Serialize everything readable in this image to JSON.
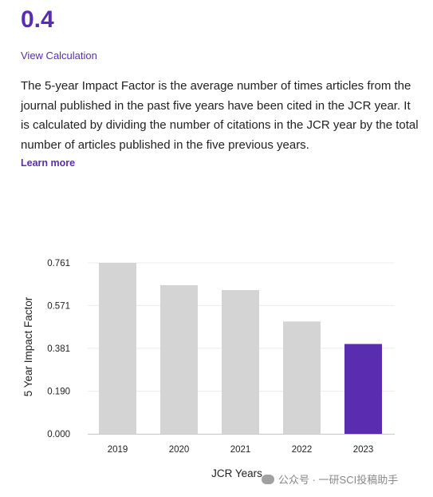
{
  "metric": {
    "value": "0.4"
  },
  "links": {
    "view_calculation": "View Calculation",
    "learn_more": "Learn more"
  },
  "description": "The 5-year Impact Factor is the average number of times articles from the journal published in the past five years have been cited in the JCR year. It is calculated by dividing the number of citations in the JCR year by the total number of articles published in the five previous years.",
  "colors": {
    "accent": "#5a2db0",
    "bar": "#d3d4d3",
    "bar_highlight": "#5a2db0"
  },
  "chart_data": {
    "type": "bar",
    "categories": [
      "2019",
      "2020",
      "2021",
      "2022",
      "2023"
    ],
    "values": [
      0.761,
      0.662,
      0.64,
      0.5,
      0.4
    ],
    "highlight_index": 4,
    "xlabel": "JCR Years",
    "ylabel": "5 Year Impact Factor",
    "yticks": [
      "0.000",
      "0.190",
      "0.381",
      "0.571",
      "0.761"
    ],
    "ylim": [
      0,
      0.761
    ],
    "grid": true
  },
  "watermark": {
    "text": "公众号 · 一研SCI投稿助手",
    "icon": "wechat-icon"
  }
}
